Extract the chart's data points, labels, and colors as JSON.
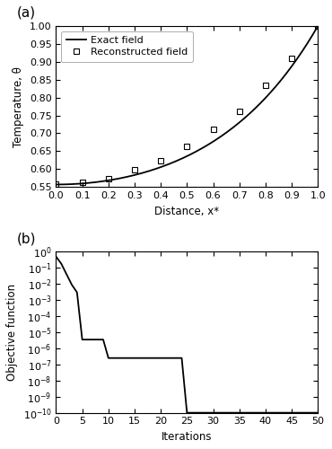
{
  "subplot_a": {
    "xlabel": "Distance, x*",
    "ylabel": "Temperature, θ",
    "xlim": [
      0,
      1
    ],
    "ylim": [
      0.55,
      1.0
    ],
    "yticks": [
      0.55,
      0.6,
      0.65,
      0.7,
      0.75,
      0.8,
      0.85,
      0.9,
      0.95,
      1.0
    ],
    "xticks": [
      0,
      0.1,
      0.2,
      0.3,
      0.4,
      0.5,
      0.6,
      0.7,
      0.8,
      0.9,
      1.0
    ],
    "reconstructed_x": [
      0,
      0.1,
      0.2,
      0.3,
      0.4,
      0.5,
      0.6,
      0.7,
      0.8,
      0.9,
      1.0
    ],
    "reconstructed_y": [
      0.557,
      0.562,
      0.572,
      0.598,
      0.623,
      0.663,
      0.71,
      0.762,
      0.833,
      0.91,
      1.0
    ],
    "legend_exact": "Exact field",
    "legend_recon": "Reconstructed field",
    "line_color": "#000000",
    "marker_color": "#000000",
    "cosh_alpha": 2.38
  },
  "subplot_b": {
    "xlabel": "Iterations",
    "ylabel": "Objective function",
    "xlim": [
      0,
      50
    ],
    "xticks": [
      0,
      5,
      10,
      15,
      20,
      25,
      30,
      35,
      40,
      45,
      50
    ],
    "iterations": [
      0,
      1,
      2,
      3,
      4,
      5,
      6,
      7,
      8,
      9,
      10,
      11,
      12,
      13,
      14,
      15,
      16,
      17,
      18,
      19,
      20,
      21,
      22,
      23,
      24,
      25,
      26,
      27,
      28,
      29,
      30,
      31,
      32,
      33,
      34,
      35,
      36,
      37,
      38,
      39,
      40,
      41,
      42,
      43,
      44,
      45,
      46,
      47,
      48,
      49,
      50
    ],
    "obj_values": [
      0.5,
      0.18,
      0.04,
      0.009,
      0.003,
      3.5e-06,
      3.5e-06,
      3.5e-06,
      3.5e-06,
      3.5e-06,
      2.5e-07,
      2.5e-07,
      2.5e-07,
      2.5e-07,
      2.5e-07,
      2.5e-07,
      2.5e-07,
      2.5e-07,
      2.5e-07,
      2.5e-07,
      2.5e-07,
      2.5e-07,
      2.5e-07,
      2.5e-07,
      2.5e-07,
      1e-10,
      1e-10,
      1e-10,
      1e-10,
      1e-10,
      1e-10,
      1e-10,
      1e-10,
      1e-10,
      1e-10,
      1e-10,
      1e-10,
      1e-10,
      1e-10,
      1e-10,
      1e-10,
      1e-10,
      1e-10,
      1e-10,
      1e-10,
      1e-10,
      1e-10,
      1e-10,
      1e-10,
      1e-10,
      1e-10
    ],
    "line_color": "#000000"
  },
  "background_color": "#ffffff",
  "label_fontsize": 8.5,
  "tick_fontsize": 8,
  "legend_fontsize": 8,
  "line_width": 1.3,
  "marker_size": 5
}
